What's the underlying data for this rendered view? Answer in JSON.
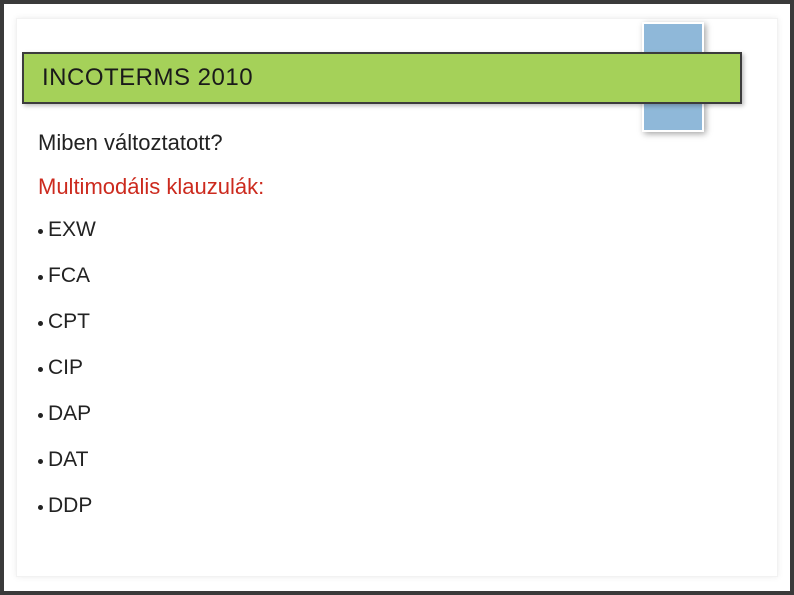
{
  "slide": {
    "title": "INCOTERMS 2010",
    "question": "Miben változtatott?",
    "subtitle": "Multimodális klauzulák:",
    "items": [
      "EXW",
      "FCA",
      "CPT",
      "CIP",
      "DAP",
      "DAT",
      "DDP"
    ]
  },
  "style": {
    "title_bar_color": "#a5d159",
    "title_bar_border": "#3c3c3c",
    "accent_box_color": "#8fb8d9",
    "accent_box_border": "#ffffff",
    "frame_color": "#3a3a3a",
    "title_fontsize": 24,
    "body_fontsize": 22,
    "list_fontsize": 21,
    "subtitle_color": "#cc2a1e",
    "text_color": "#222222",
    "background": "#ffffff",
    "bullet_color": "#222222"
  }
}
